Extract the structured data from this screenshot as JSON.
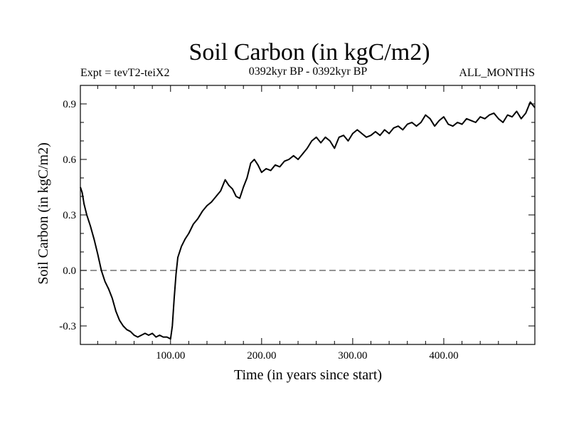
{
  "chart_data": {
    "type": "line",
    "title": "Soil Carbon (in kgC/m2)",
    "subtitle_left": "Expt = tevT2-teiX2",
    "subtitle_center": "0392kyr BP - 0392kyr BP",
    "subtitle_right": "ALL_MONTHS",
    "xlabel": "Time (in years since start)",
    "ylabel": "Soil Carbon (in kgC/m2)",
    "xlim": [
      1,
      500
    ],
    "ylim": [
      -0.4,
      1.0
    ],
    "x_ticks": [
      100,
      200,
      300,
      400
    ],
    "x_tick_labels": [
      "100.00",
      "200.00",
      "300.00",
      "400.00"
    ],
    "y_ticks": [
      -0.3,
      0.0,
      0.3,
      0.6,
      0.9
    ],
    "y_tick_labels": [
      "-0.3",
      "0.0",
      "0.3",
      "0.6",
      "0.9"
    ],
    "reference_line": {
      "y": 0.0,
      "style": "dashed"
    },
    "grid": false,
    "series": [
      {
        "color": "#000000",
        "x": [
          1,
          3,
          5,
          8,
          12,
          16,
          20,
          24,
          28,
          32,
          36,
          40,
          44,
          48,
          52,
          56,
          60,
          64,
          68,
          72,
          76,
          80,
          84,
          88,
          92,
          96,
          100,
          102,
          104,
          106,
          108,
          112,
          116,
          120,
          125,
          130,
          135,
          140,
          145,
          150,
          155,
          160,
          164,
          168,
          172,
          176,
          180,
          184,
          188,
          192,
          196,
          200,
          205,
          210,
          215,
          220,
          225,
          230,
          235,
          240,
          245,
          250,
          255,
          260,
          265,
          270,
          275,
          280,
          285,
          290,
          295,
          300,
          305,
          310,
          315,
          320,
          325,
          330,
          335,
          340,
          345,
          350,
          355,
          360,
          365,
          370,
          375,
          380,
          385,
          390,
          395,
          400,
          405,
          410,
          415,
          420,
          425,
          430,
          435,
          440,
          445,
          450,
          455,
          460,
          465,
          470,
          475,
          480,
          485,
          490,
          495,
          500
        ],
        "y": [
          0.45,
          0.42,
          0.36,
          0.3,
          0.24,
          0.17,
          0.09,
          0.0,
          -0.06,
          -0.1,
          -0.15,
          -0.22,
          -0.27,
          -0.3,
          -0.32,
          -0.33,
          -0.35,
          -0.36,
          -0.35,
          -0.34,
          -0.35,
          -0.34,
          -0.36,
          -0.35,
          -0.36,
          -0.36,
          -0.37,
          -0.3,
          -0.15,
          -0.02,
          0.07,
          0.13,
          0.17,
          0.2,
          0.25,
          0.28,
          0.32,
          0.35,
          0.37,
          0.4,
          0.43,
          0.49,
          0.46,
          0.44,
          0.4,
          0.39,
          0.45,
          0.5,
          0.58,
          0.6,
          0.57,
          0.53,
          0.55,
          0.54,
          0.57,
          0.56,
          0.59,
          0.6,
          0.62,
          0.6,
          0.63,
          0.66,
          0.7,
          0.72,
          0.69,
          0.72,
          0.7,
          0.66,
          0.72,
          0.73,
          0.7,
          0.74,
          0.76,
          0.74,
          0.72,
          0.73,
          0.75,
          0.73,
          0.76,
          0.74,
          0.77,
          0.78,
          0.76,
          0.79,
          0.8,
          0.78,
          0.8,
          0.84,
          0.82,
          0.78,
          0.81,
          0.83,
          0.79,
          0.78,
          0.8,
          0.79,
          0.82,
          0.81,
          0.8,
          0.83,
          0.82,
          0.84,
          0.85,
          0.82,
          0.8,
          0.84,
          0.83,
          0.86,
          0.82,
          0.85,
          0.91,
          0.88
        ]
      }
    ]
  }
}
